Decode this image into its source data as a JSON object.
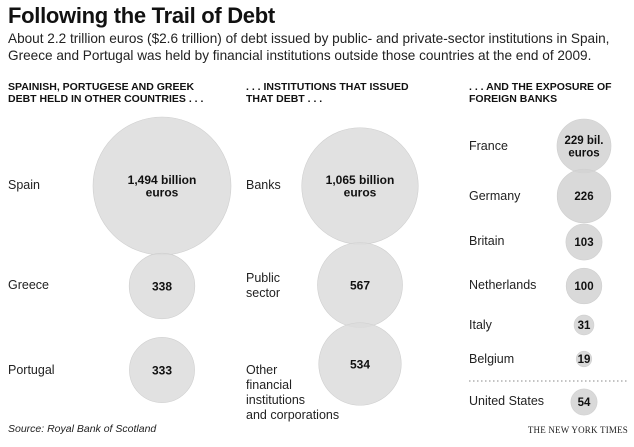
{
  "title": "Following the Trail of Debt",
  "subtitle": "About 2.2 trillion euros ($2.6 trillion) of debt issued by public- and private-sector institutions in Spain, Greece and Portugal was held by financial institutions outside those countries at the end of 2009.",
  "source": "Source: Royal Bank of Scotland",
  "credit": "THE NEW YORK TIMES",
  "colors": {
    "bubble": "#dcdcdc",
    "bubble_edge": "#cfcfcf",
    "small_bubble": "#d2d2d2",
    "divider": "#888888"
  },
  "chart_data": [
    {
      "type": "bubble",
      "title_lines": [
        "SPAINISH, PORTUGESE AND GREEK",
        "DEBT HELD IN OTHER COUNTRIES . . ."
      ],
      "unit": "billion euros",
      "categories": [
        "Spain",
        "Greece",
        "Portugal"
      ],
      "values": [
        1494,
        338,
        333
      ],
      "value_labels": [
        [
          "1,494 billion",
          "euros"
        ],
        [
          "338"
        ],
        [
          "333"
        ]
      ]
    },
    {
      "type": "bubble",
      "title_lines": [
        ". . . INSTITUTIONS THAT ISSUED",
        "THAT DEBT . . ."
      ],
      "unit": "billion euros",
      "categories": [
        "Banks",
        "Public sector",
        "Other financial institutions and corporations"
      ],
      "category_lines": [
        [
          "Banks"
        ],
        [
          "Public",
          "sector"
        ],
        [
          "Other",
          "financial",
          "institutions",
          "and corporations"
        ]
      ],
      "values": [
        1065,
        567,
        534
      ],
      "value_labels": [
        [
          "1,065 billion",
          "euros"
        ],
        [
          "567"
        ],
        [
          "534"
        ]
      ]
    },
    {
      "type": "bubble",
      "title_lines": [
        ". . . AND THE EXPOSURE OF",
        "FOREIGN BANKS"
      ],
      "unit": "billion euros",
      "categories": [
        "France",
        "Germany",
        "Britain",
        "Netherlands",
        "Italy",
        "Belgium",
        "United States"
      ],
      "values": [
        229,
        226,
        103,
        100,
        31,
        19,
        54
      ],
      "value_labels": [
        [
          "229 bil.",
          "euros"
        ],
        [
          "226"
        ],
        [
          "103"
        ],
        [
          "100"
        ],
        [
          "31"
        ],
        [
          "19"
        ],
        [
          "54"
        ]
      ],
      "divider_before": "United States"
    }
  ]
}
